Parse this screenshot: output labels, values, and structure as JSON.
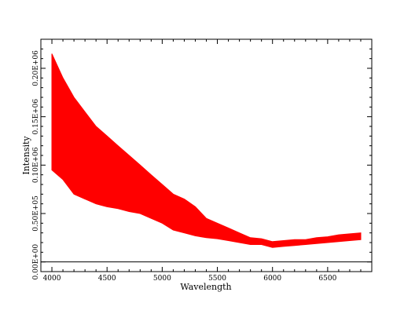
{
  "chart_data": {
    "type": "line",
    "title": "",
    "xlabel": "Wavelength",
    "ylabel": "Intensity",
    "xlim": [
      3900,
      6900
    ],
    "ylim": [
      -10000,
      230000
    ],
    "x_ticks": [
      4000,
      4500,
      5000,
      5500,
      6000,
      6500
    ],
    "x_tick_labels": [
      "4000",
      "4500",
      "5000",
      "5500",
      "6000",
      "6500"
    ],
    "y_ticks": [
      0,
      50000,
      100000,
      150000,
      200000
    ],
    "y_tick_labels": [
      "0.00E+00",
      "0.50E+05",
      "0.10E+06",
      "0.15E+06",
      "0.20E+06"
    ],
    "grid": false,
    "series_color": "#ff0000",
    "series": [
      {
        "x": [
          4000,
          4100,
          4200,
          4300,
          4400,
          4500,
          4600,
          4700,
          4800,
          4900,
          5000,
          5100,
          5200,
          5300,
          5400,
          5500,
          5600,
          5700,
          5800,
          5900,
          6000,
          6100,
          6200,
          6300,
          6400,
          6500,
          6600,
          6700,
          6800
        ],
        "upper": [
          215000,
          190000,
          170000,
          155000,
          140000,
          130000,
          120000,
          110000,
          100000,
          90000,
          80000,
          70000,
          65000,
          57000,
          45000,
          40000,
          35000,
          30000,
          25000,
          24000,
          21000,
          22000,
          23000,
          23000,
          25000,
          26000,
          28000,
          29000,
          30000
        ],
        "lower": [
          95000,
          85000,
          70000,
          65000,
          60000,
          57000,
          55000,
          52000,
          50000,
          45000,
          40000,
          33000,
          30000,
          27000,
          25000,
          24000,
          22000,
          20000,
          18000,
          18000,
          15000,
          16000,
          17000,
          18000,
          19000,
          20000,
          21000,
          22000,
          23000
        ]
      }
    ]
  }
}
